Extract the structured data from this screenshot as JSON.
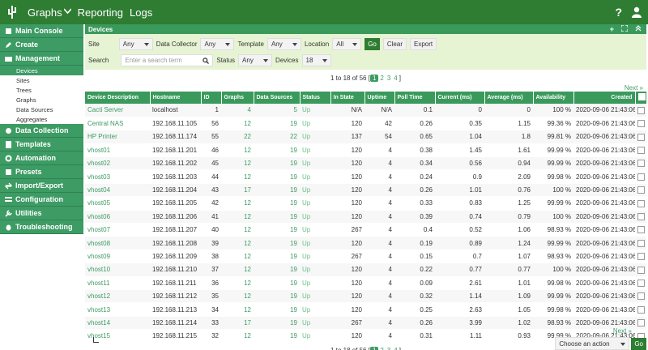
{
  "nav": {
    "graphs": "Graphs",
    "reporting": "Reporting",
    "logs": "Logs",
    "help": "?"
  },
  "sidebar": {
    "groups": [
      {
        "label": "Main Console",
        "icon": "home-icon"
      },
      {
        "label": "Create",
        "icon": "create-icon"
      },
      {
        "label": "Management",
        "icon": "management-icon",
        "subs": [
          "Devices",
          "Sites",
          "Trees",
          "Graphs",
          "Data Sources",
          "Aggregates"
        ]
      },
      {
        "label": "Data Collection",
        "icon": "data-collection-icon"
      },
      {
        "label": "Templates",
        "icon": "templates-icon"
      },
      {
        "label": "Automation",
        "icon": "automation-icon"
      },
      {
        "label": "Presets",
        "icon": "presets-icon"
      },
      {
        "label": "Import/Export",
        "icon": "import-export-icon"
      },
      {
        "label": "Configuration",
        "icon": "configuration-icon"
      },
      {
        "label": "Utilities",
        "icon": "utilities-icon"
      },
      {
        "label": "Troubleshooting",
        "icon": "troubleshooting-icon"
      }
    ]
  },
  "panel": {
    "title": "Devices",
    "filters": {
      "site_label": "Site",
      "site_value": "Any",
      "collector_label": "Data Collector",
      "collector_value": "Any",
      "template_label": "Template",
      "template_value": "Any",
      "location_label": "Location",
      "location_value": "All",
      "go": "Go",
      "clear": "Clear",
      "export": "Export",
      "search_label": "Search",
      "search_placeholder": "Enter a search term",
      "status_label": "Status",
      "status_value": "Any",
      "devices_label": "Devices",
      "devices_value": "18"
    },
    "pager": {
      "text": "1 to 18 of 56 [",
      "close": "]",
      "pages": [
        "1",
        "2",
        "3",
        "4"
      ],
      "next": "Next"
    },
    "columns": [
      "Device Description",
      "Hostname",
      "ID",
      "Graphs",
      "Data Sources",
      "Status",
      "In State",
      "Uptime",
      "Poll Time",
      "Current (ms)",
      "Average (ms)",
      "Availability",
      "Created"
    ],
    "rows": [
      [
        "Cacti Server",
        "localhost",
        "1",
        "4",
        "5",
        "Up",
        "N/A",
        "N/A",
        "0.1",
        "0",
        "0",
        "100 %",
        "2020-09-06 21:43:06"
      ],
      [
        "Central NAS",
        "192.168.11.105",
        "56",
        "12",
        "19",
        "Up",
        "120",
        "42",
        "0.26",
        "0.35",
        "1.15",
        "99.36 %",
        "2020-09-06 21:43:06"
      ],
      [
        "HP Printer",
        "192.168.11.174",
        "55",
        "22",
        "22",
        "Up",
        "137",
        "54",
        "0.65",
        "1.04",
        "1.8",
        "99.81 %",
        "2020-09-06 21:43:06"
      ],
      [
        "vhost01",
        "192.168.11.201",
        "46",
        "12",
        "19",
        "Up",
        "120",
        "4",
        "0.38",
        "1.45",
        "1.61",
        "99.99 %",
        "2020-09-06 21:43:06"
      ],
      [
        "vhost02",
        "192.168.11.202",
        "45",
        "12",
        "19",
        "Up",
        "120",
        "4",
        "0.34",
        "0.56",
        "0.94",
        "99.99 %",
        "2020-09-06 21:43:06"
      ],
      [
        "vhost03",
        "192.168.11.203",
        "44",
        "12",
        "19",
        "Up",
        "120",
        "4",
        "0.24",
        "0.9",
        "2.09",
        "99.98 %",
        "2020-09-06 21:43:06"
      ],
      [
        "vhost04",
        "192.168.11.204",
        "43",
        "17",
        "19",
        "Up",
        "120",
        "4",
        "0.26",
        "1.01",
        "0.76",
        "100 %",
        "2020-09-06 21:43:06"
      ],
      [
        "vhost05",
        "192.168.11.205",
        "42",
        "12",
        "19",
        "Up",
        "120",
        "4",
        "0.33",
        "0.83",
        "1.25",
        "99.99 %",
        "2020-09-06 21:43:06"
      ],
      [
        "vhost06",
        "192.168.11.206",
        "41",
        "12",
        "19",
        "Up",
        "120",
        "4",
        "0.39",
        "0.74",
        "0.79",
        "100 %",
        "2020-09-06 21:43:06"
      ],
      [
        "vhost07",
        "192.168.11.207",
        "40",
        "12",
        "19",
        "Up",
        "267",
        "4",
        "0.4",
        "0.52",
        "1.06",
        "98.93 %",
        "2020-09-06 21:43:06"
      ],
      [
        "vhost08",
        "192.168.11.208",
        "39",
        "12",
        "19",
        "Up",
        "120",
        "4",
        "0.19",
        "0.89",
        "1.24",
        "99.99 %",
        "2020-09-06 21:43:06"
      ],
      [
        "vhost09",
        "192.168.11.209",
        "38",
        "12",
        "19",
        "Up",
        "267",
        "4",
        "0.15",
        "0.7",
        "1.07",
        "98.93 %",
        "2020-09-06 21:43:06"
      ],
      [
        "vhost10",
        "192.168.11.210",
        "37",
        "12",
        "19",
        "Up",
        "120",
        "4",
        "0.22",
        "0.77",
        "0.77",
        "100 %",
        "2020-09-06 21:43:06"
      ],
      [
        "vhost11",
        "192.168.11.211",
        "36",
        "12",
        "19",
        "Up",
        "120",
        "4",
        "0.09",
        "2.61",
        "1.01",
        "99.98 %",
        "2020-09-06 21:43:06"
      ],
      [
        "vhost12",
        "192.168.11.212",
        "35",
        "12",
        "19",
        "Up",
        "120",
        "4",
        "0.32",
        "1.14",
        "1.09",
        "99.99 %",
        "2020-09-06 21:43:06"
      ],
      [
        "vhost13",
        "192.168.11.213",
        "34",
        "12",
        "19",
        "Up",
        "120",
        "4",
        "0.25",
        "2.63",
        "1.05",
        "99.98 %",
        "2020-09-06 21:43:06"
      ],
      [
        "vhost14",
        "192.168.11.214",
        "33",
        "17",
        "19",
        "Up",
        "267",
        "4",
        "0.26",
        "3.99",
        "1.02",
        "98.93 %",
        "2020-09-06 21:43:06"
      ],
      [
        "vhost15",
        "192.168.11.215",
        "32",
        "12",
        "19",
        "Up",
        "120",
        "4",
        "0.31",
        "1.11",
        "0.93",
        "99.99 %",
        "2020-09-06 21:43:06"
      ]
    ],
    "action_placeholder": "Choose an action",
    "action_go": "Go"
  },
  "colors": {
    "primary": "#2e7d32",
    "accent": "#3d9b64",
    "filter_bg": "#e7f4d4"
  }
}
